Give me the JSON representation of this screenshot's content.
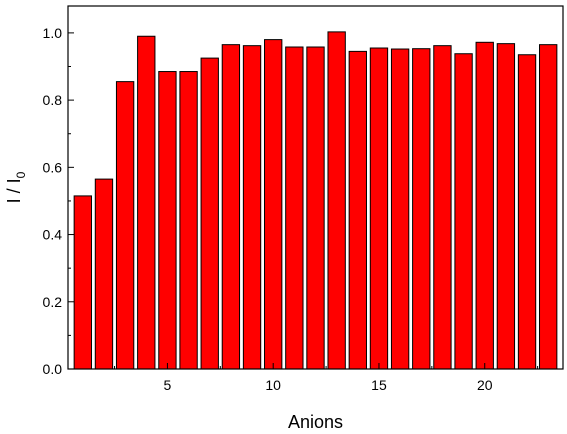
{
  "chart_data": {
    "type": "bar",
    "x": [
      1,
      2,
      3,
      4,
      5,
      6,
      7,
      8,
      9,
      10,
      11,
      12,
      13,
      14,
      15,
      16,
      17,
      18,
      19,
      20,
      21,
      22,
      23
    ],
    "values": [
      0.515,
      0.565,
      0.855,
      0.99,
      0.885,
      0.885,
      0.925,
      0.965,
      0.962,
      0.98,
      0.958,
      0.958,
      1.003,
      0.945,
      0.955,
      0.952,
      0.953,
      0.962,
      0.938,
      0.972,
      0.968,
      0.935,
      0.965
    ],
    "xlabel": "Anions",
    "ylabel_main": "I / I",
    "ylabel_sub": "0",
    "xlim": [
      0.3,
      23.7
    ],
    "ylim": [
      0,
      1.08
    ],
    "xticks": [
      5,
      10,
      15,
      20
    ],
    "yticks": [
      0.0,
      0.2,
      0.4,
      0.6,
      0.8,
      1.0
    ],
    "ytick_labels": [
      "0.0",
      "0.2",
      "0.4",
      "0.6",
      "0.8",
      "1.0"
    ],
    "bar_color": "#ff0000",
    "edge_color": "#000000",
    "grid": false,
    "legend": "none"
  }
}
